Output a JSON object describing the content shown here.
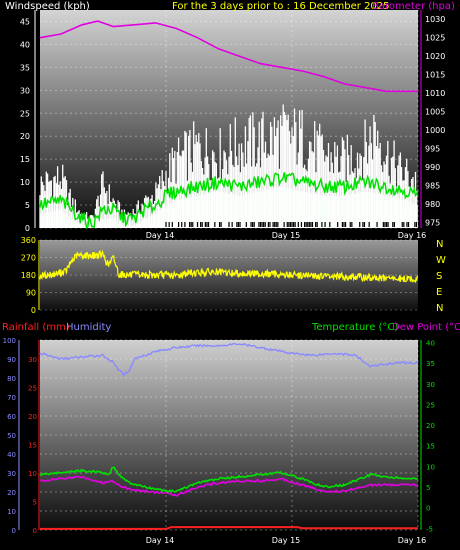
{
  "header": {
    "windspeed_label": "Windspeed (kph)",
    "period_title": "For the 3 days prior to : 16 December 2025",
    "barometer_label": "Barometer (hpa)",
    "rainfall_label": "Rainfall (mm)",
    "humidity_label": "Humidity",
    "temperature_label": "Temperature (°C)",
    "dewpoint_label": "Dew Point (°C)"
  },
  "colors": {
    "windspeed": "#ffffff",
    "wind_avg": "#00e000",
    "wind_calm": "#c8ffc8",
    "barometer": "#e000e0",
    "direction": "#ffff00",
    "rainfall": "#ff2020",
    "humidity": "#8a8aff",
    "temperature": "#00e000",
    "dewpoint": "#e000e0",
    "title": "#ffff00"
  },
  "chart_data": [
    {
      "type": "line",
      "name": "wind-barometer",
      "x_labels": [
        "Day 14",
        "Day 15",
        "Day 16"
      ],
      "x_label_positions_hours": [
        24,
        48,
        72
      ],
      "x_range_hours": [
        0,
        72
      ],
      "left_axis": {
        "label": "Windspeed (kph)",
        "ticks": [
          0,
          5,
          10,
          15,
          20,
          25,
          30,
          35,
          40,
          45
        ],
        "ylim": [
          0,
          47.5
        ]
      },
      "right_axis": {
        "label": "Barometer (hpa)",
        "ticks": [
          975,
          980,
          985,
          990,
          995,
          1000,
          1005,
          1010,
          1015,
          1020,
          1025,
          1030
        ],
        "ylim": [
          973.5,
          1032.5
        ]
      },
      "grid": true,
      "series": [
        {
          "key": "barometer",
          "axis": "right",
          "points": [
            [
              0,
              1025
            ],
            [
              4,
              1026
            ],
            [
              8,
              1028.5
            ],
            [
              11,
              1029.5
            ],
            [
              14,
              1028
            ],
            [
              18,
              1028.5
            ],
            [
              22,
              1029
            ],
            [
              26,
              1027.5
            ],
            [
              30,
              1025
            ],
            [
              34,
              1022
            ],
            [
              38,
              1020
            ],
            [
              42,
              1018
            ],
            [
              46,
              1017
            ],
            [
              50,
              1016
            ],
            [
              54,
              1014.5
            ],
            [
              58,
              1012.5
            ],
            [
              62,
              1011.5
            ],
            [
              66,
              1010.5
            ],
            [
              70,
              1010.5
            ],
            [
              72,
              1010.5
            ]
          ]
        },
        {
          "key": "wind_gust_envelope",
          "axis": "left",
          "points": [
            [
              0,
              13
            ],
            [
              4,
              15
            ],
            [
              6,
              8
            ],
            [
              8,
              4
            ],
            [
              10,
              3
            ],
            [
              12,
              13
            ],
            [
              14,
              8
            ],
            [
              16,
              4
            ],
            [
              18,
              5
            ],
            [
              20,
              8
            ],
            [
              22,
              10
            ],
            [
              24,
              16
            ],
            [
              26,
              20
            ],
            [
              30,
              24
            ],
            [
              34,
              22
            ],
            [
              38,
              25
            ],
            [
              42,
              26
            ],
            [
              46,
              28
            ],
            [
              50,
              27
            ],
            [
              54,
              22
            ],
            [
              58,
              20
            ],
            [
              62,
              24
            ],
            [
              64,
              30
            ],
            [
              66,
              22
            ],
            [
              68,
              18
            ],
            [
              72,
              14
            ]
          ]
        },
        {
          "key": "wind_avg",
          "axis": "left",
          "points": [
            [
              0,
              5
            ],
            [
              4,
              6
            ],
            [
              6,
              4
            ],
            [
              8,
              2
            ],
            [
              10,
              1
            ],
            [
              12,
              4
            ],
            [
              14,
              4
            ],
            [
              16,
              2
            ],
            [
              18,
              2
            ],
            [
              20,
              4
            ],
            [
              22,
              5
            ],
            [
              24,
              7
            ],
            [
              26,
              8
            ],
            [
              30,
              9
            ],
            [
              34,
              10
            ],
            [
              38,
              9
            ],
            [
              42,
              10
            ],
            [
              46,
              11
            ],
            [
              50,
              10
            ],
            [
              54,
              9
            ],
            [
              58,
              9
            ],
            [
              62,
              10
            ],
            [
              66,
              9
            ],
            [
              70,
              8
            ],
            [
              72,
              7
            ]
          ]
        }
      ]
    },
    {
      "type": "line",
      "name": "wind-direction",
      "x_range_hours": [
        0,
        72
      ],
      "left_axis": {
        "ticks": [
          0,
          90,
          180,
          270,
          360
        ],
        "ylim": [
          0,
          360
        ]
      },
      "right_labels": [
        "N",
        "W",
        "S",
        "E",
        "N"
      ],
      "series": [
        {
          "key": "direction",
          "points": [
            [
              0,
              175
            ],
            [
              3,
              185
            ],
            [
              5,
              200
            ],
            [
              6,
              250
            ],
            [
              7,
              280
            ],
            [
              8,
              280
            ],
            [
              10,
              280
            ],
            [
              12,
              285
            ],
            [
              13,
              230
            ],
            [
              14,
              270
            ],
            [
              15,
              185
            ],
            [
              17,
              180
            ],
            [
              20,
              180
            ],
            [
              24,
              180
            ],
            [
              26,
              175
            ],
            [
              28,
              190
            ],
            [
              32,
              195
            ],
            [
              36,
              190
            ],
            [
              40,
              188
            ],
            [
              44,
              185
            ],
            [
              48,
              180
            ],
            [
              52,
              175
            ],
            [
              56,
              172
            ],
            [
              60,
              170
            ],
            [
              64,
              165
            ],
            [
              68,
              160
            ],
            [
              72,
              160
            ]
          ]
        }
      ]
    },
    {
      "type": "line",
      "name": "humidity-temperature",
      "x_labels": [
        "Day 14",
        "Day 15",
        "Day 16"
      ],
      "x_label_positions_hours": [
        24,
        48,
        72
      ],
      "x_range_hours": [
        0,
        72
      ],
      "left_axis": {
        "label": "Humidity",
        "ticks": [
          0,
          10,
          20,
          30,
          40,
          50,
          60,
          70,
          80,
          90,
          100
        ],
        "ylim": [
          0,
          100
        ]
      },
      "rain_axis": {
        "label": "Rainfall (mm)",
        "ticks": [
          0,
          5,
          10,
          15,
          20,
          25,
          30
        ],
        "ylim": [
          0,
          33.3
        ]
      },
      "right_axis": {
        "label": "Temperature (°C)",
        "ticks": [
          -5,
          0,
          5,
          10,
          15,
          20,
          25,
          30,
          35,
          40
        ],
        "ylim": [
          -5.4,
          40.6
        ]
      },
      "grid": true,
      "series": [
        {
          "key": "humidity",
          "axis": "left",
          "points": [
            [
              0,
              93
            ],
            [
              4,
              90
            ],
            [
              8,
              91
            ],
            [
              12,
              92
            ],
            [
              14,
              88
            ],
            [
              15,
              84
            ],
            [
              16,
              82
            ],
            [
              17,
              84
            ],
            [
              18,
              90
            ],
            [
              22,
              94
            ],
            [
              26,
              96
            ],
            [
              30,
              97
            ],
            [
              34,
              97
            ],
            [
              38,
              98
            ],
            [
              42,
              96
            ],
            [
              46,
              94
            ],
            [
              48,
              93
            ],
            [
              52,
              92
            ],
            [
              56,
              93
            ],
            [
              60,
              92
            ],
            [
              62,
              88
            ],
            [
              63,
              86
            ],
            [
              65,
              87
            ],
            [
              68,
              88
            ],
            [
              72,
              88
            ]
          ]
        },
        {
          "key": "temperature",
          "axis": "right",
          "points": [
            [
              0,
              8
            ],
            [
              4,
              8.5
            ],
            [
              8,
              9
            ],
            [
              12,
              8.5
            ],
            [
              13,
              8
            ],
            [
              14,
              10
            ],
            [
              15,
              8
            ],
            [
              17,
              6
            ],
            [
              20,
              5
            ],
            [
              24,
              4
            ],
            [
              26,
              4
            ],
            [
              28,
              5
            ],
            [
              30,
              6
            ],
            [
              34,
              7
            ],
            [
              38,
              7.5
            ],
            [
              42,
              8
            ],
            [
              46,
              8.5
            ],
            [
              50,
              7
            ],
            [
              54,
              5
            ],
            [
              58,
              5.5
            ],
            [
              61,
              7
            ],
            [
              63,
              8
            ],
            [
              66,
              7.5
            ],
            [
              70,
              7
            ],
            [
              72,
              7
            ]
          ]
        },
        {
          "key": "dewpoint",
          "axis": "right",
          "points": [
            [
              0,
              6.5
            ],
            [
              4,
              7
            ],
            [
              8,
              7.5
            ],
            [
              12,
              6
            ],
            [
              14,
              6.5
            ],
            [
              15,
              5.5
            ],
            [
              17,
              4.5
            ],
            [
              20,
              4
            ],
            [
              24,
              3.5
            ],
            [
              26,
              3
            ],
            [
              28,
              4
            ],
            [
              30,
              5
            ],
            [
              34,
              6
            ],
            [
              38,
              6.5
            ],
            [
              42,
              6.5
            ],
            [
              46,
              7
            ],
            [
              50,
              5.5
            ],
            [
              54,
              4
            ],
            [
              58,
              4
            ],
            [
              61,
              5
            ],
            [
              63,
              5.5
            ],
            [
              66,
              5.5
            ],
            [
              70,
              5.5
            ],
            [
              72,
              5.5
            ]
          ]
        },
        {
          "key": "rainfall",
          "axis": "rain",
          "points": [
            [
              0,
              0.2
            ],
            [
              24,
              0.2
            ],
            [
              25,
              0.5
            ],
            [
              49,
              0.5
            ],
            [
              50,
              0.3
            ],
            [
              72,
              0.3
            ]
          ]
        }
      ]
    }
  ]
}
